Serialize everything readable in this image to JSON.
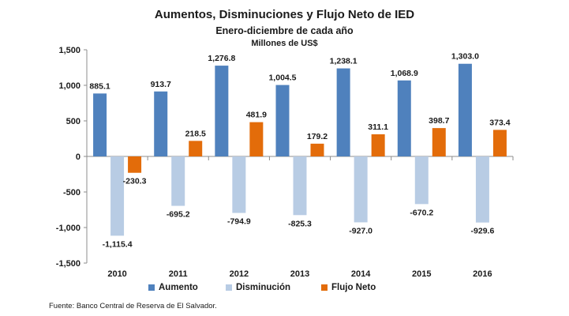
{
  "header": {
    "title": "Aumentos, Disminuciones y Flujo Neto de IED",
    "subtitle": "Enero-diciembre de cada año",
    "units": "Millones de US$"
  },
  "source": "Fuente: Banco Central de Reserva de El Salvador.",
  "colors": {
    "aumento": "#4f81bd",
    "disminucion": "#b8cce4",
    "flujo": "#e36c0a"
  },
  "chart_data": {
    "type": "bar",
    "title": "Aumentos, Disminuciones y Flujo Neto de IED",
    "subtitle": "Enero-diciembre de cada año",
    "ylabel": "Millones de US$",
    "ylim": [
      -1500,
      1500
    ],
    "yticks": [
      1500,
      1000,
      500,
      0,
      -500,
      -1000,
      -1500
    ],
    "ytick_labels": [
      "1,500",
      "1,000",
      "500",
      "0",
      "-500",
      "-1,000",
      "-1,500"
    ],
    "categories": [
      "2010",
      "2011",
      "2012",
      "2013",
      "2014",
      "2015",
      "2016"
    ],
    "legend_position": "bottom",
    "grid": false,
    "series": [
      {
        "name": "Aumento",
        "values": [
          885.1,
          913.7,
          1276.8,
          1004.5,
          1238.1,
          1068.9,
          1303.0
        ],
        "labels": [
          "885.1",
          "913.7",
          "1,276.8",
          "1,004.5",
          "1,238.1",
          "1,068.9",
          "1,303.0"
        ]
      },
      {
        "name": "Disminución",
        "values": [
          -1115.4,
          -695.2,
          -794.9,
          -825.3,
          -927.0,
          -670.2,
          -929.6
        ],
        "labels": [
          "-1,115.4",
          "-695.2",
          "-794.9",
          "-825.3",
          "-927.0",
          "-670.2",
          "-929.6"
        ]
      },
      {
        "name": "Flujo Neto",
        "values": [
          -230.3,
          218.5,
          481.9,
          179.2,
          311.1,
          398.7,
          373.4
        ],
        "labels": [
          "-230.3",
          "218.5",
          "481.9",
          "179.2",
          "311.1",
          "398.7",
          "373.4"
        ]
      }
    ]
  }
}
